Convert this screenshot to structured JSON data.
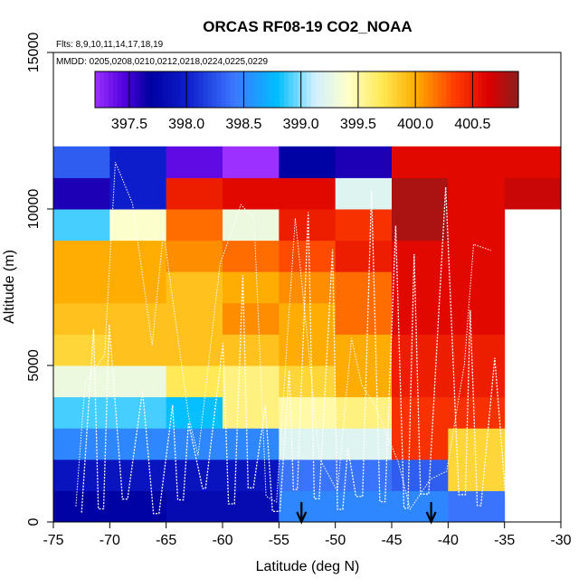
{
  "chart_data": {
    "type": "heatmap",
    "title": "ORCAS RF08-19 CO2_NOAA",
    "flights_label": "Flts: 8,9,10,11,14,17,18,19",
    "dates_label": "MMDD: 0205,0208,0210,0212,0218,0224,0225,0229",
    "xlabel": "Latitude (deg N)",
    "ylabel": "Altitude (m)",
    "xlim": [
      -75,
      -30
    ],
    "ylim": [
      0,
      15000
    ],
    "x_ticks": [
      "-75",
      "-70",
      "-65",
      "-60",
      "-55",
      "-50",
      "-45",
      "-40",
      "-35",
      "-30"
    ],
    "y_ticks": [
      "0",
      "5000",
      "10000",
      "15000"
    ],
    "colorbar": {
      "range": [
        397.2,
        400.9
      ],
      "ticks": [
        "397.5",
        "398.0",
        "398.5",
        "399.0",
        "399.5",
        "400.0",
        "400.5"
      ],
      "tick_values": [
        397.5,
        398.0,
        398.5,
        399.0,
        399.5,
        400.0,
        400.5
      ]
    },
    "lat_bins": [
      -75,
      -70,
      -65,
      -60,
      -55,
      -50,
      -45,
      -40,
      -35,
      -30
    ],
    "alt_bins": [
      0,
      1000,
      2000,
      3000,
      4000,
      5000,
      6000,
      7000,
      8000,
      9000,
      10000,
      11000,
      12000
    ],
    "grid_values": [
      [
        397.7,
        397.7,
        397.8,
        397.8,
        398.5,
        398.5,
        398.5,
        398.4,
        null
      ],
      [
        397.9,
        397.9,
        397.9,
        397.9,
        398.4,
        398.4,
        398.3,
        399.8,
        null
      ],
      [
        398.5,
        398.5,
        398.5,
        398.5,
        399.2,
        399.2,
        400.4,
        399.8,
        null
      ],
      [
        398.9,
        398.9,
        398.8,
        399.6,
        399.5,
        399.6,
        400.4,
        400.4,
        null
      ],
      [
        399.3,
        399.3,
        399.7,
        399.6,
        399.8,
        400.0,
        400.5,
        400.5,
        null
      ],
      [
        399.8,
        399.9,
        399.9,
        399.9,
        400.0,
        400.0,
        400.5,
        400.5,
        null
      ],
      [
        399.9,
        399.9,
        399.9,
        400.1,
        400.0,
        400.2,
        400.6,
        400.6,
        null
      ],
      [
        400.0,
        400.0,
        399.9,
        400.0,
        400.1,
        400.2,
        400.6,
        400.6,
        null
      ],
      [
        400.0,
        400.0,
        400.1,
        400.2,
        400.3,
        400.5,
        400.6,
        400.6,
        null
      ],
      [
        398.9,
        399.4,
        400.2,
        399.3,
        400.5,
        400.4,
        400.8,
        400.6,
        null
      ],
      [
        397.6,
        398.0,
        400.5,
        400.6,
        400.6,
        399.2,
        400.8,
        400.6,
        400.7
      ],
      [
        398.3,
        398.0,
        397.4,
        397.2,
        397.7,
        397.6,
        400.6,
        400.6,
        400.6
      ]
    ],
    "arrows": [
      {
        "x": -53
      },
      {
        "x": -41.5
      }
    ],
    "legend": "top-left colorbar",
    "grid": false
  }
}
